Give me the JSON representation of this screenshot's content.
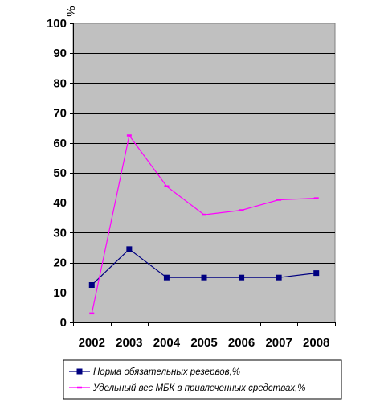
{
  "chart_data": {
    "type": "line",
    "ylabel": "%",
    "ylim": [
      0,
      100
    ],
    "yticks": [
      0,
      10,
      20,
      30,
      40,
      50,
      60,
      70,
      80,
      90,
      100
    ],
    "categories": [
      "2002",
      "2003",
      "2004",
      "2005",
      "2006",
      "2007",
      "2008"
    ],
    "grid": true,
    "legend_position": "bottom",
    "series": [
      {
        "name": "Норма обязательных резервов,%",
        "values": [
          12.5,
          24.5,
          15,
          15,
          15,
          15,
          16.5
        ],
        "color": "#000080",
        "marker": "square"
      },
      {
        "name": "Удельный вес МБК  в привлеченных средствах,%",
        "values": [
          3,
          62.5,
          45.5,
          36,
          37.5,
          41,
          41.5
        ],
        "color": "#ff00ff",
        "marker": "dash"
      }
    ]
  }
}
